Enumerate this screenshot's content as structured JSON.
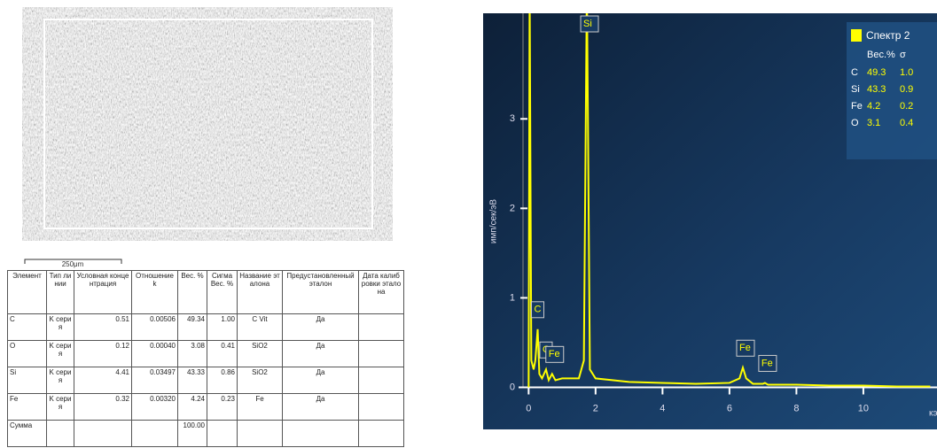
{
  "image": {
    "label": "Спектр 2",
    "scale": "250μm"
  },
  "table": {
    "headers": [
      "Элемент",
      "Тип линии",
      "Условная концентрация",
      "Отношение k",
      "Вес. %",
      "Сигма Вес. %",
      "Название эталона",
      "Предустановленный эталон",
      "Дата калибровки эталона"
    ],
    "rows": [
      {
        "element": "C",
        "line": "K серия",
        "conc": "0.51",
        "ratio": "0.00506",
        "wt": "49.34",
        "sigma": "1.00",
        "standard": "C Vit",
        "preset": "Да"
      },
      {
        "element": "O",
        "line": "K серия",
        "conc": "0.12",
        "ratio": "0.00040",
        "wt": "3.08",
        "sigma": "0.41",
        "standard": "SiO2",
        "preset": "Да"
      },
      {
        "element": "Si",
        "line": "K серия",
        "conc": "4.41",
        "ratio": "0.03497",
        "wt": "43.33",
        "sigma": "0.86",
        "standard": "SiO2",
        "preset": "Да"
      },
      {
        "element": "Fe",
        "line": "K серия",
        "conc": "0.32",
        "ratio": "0.00320",
        "wt": "4.24",
        "sigma": "0.23",
        "standard": "Fe",
        "preset": "Да"
      }
    ],
    "sum": {
      "label": "Сумма",
      "wt": "100.00"
    }
  },
  "chart_data": {
    "type": "line",
    "y_label": "имп/сек/эВ",
    "x_label": "кэ",
    "series": [
      {
        "name": "Спектр 2",
        "color": "#ffff00",
        "x": [
          0,
          0.03,
          0.08,
          0.15,
          0.2,
          0.27,
          0.32,
          0.4,
          0.52,
          0.6,
          0.7,
          0.8,
          1.0,
          1.2,
          1.5,
          1.65,
          1.74,
          1.83,
          2.0,
          2.5,
          3,
          4,
          5,
          6,
          6.3,
          6.4,
          6.5,
          6.7,
          7.0,
          7.06,
          7.15,
          8,
          9,
          10,
          11,
          12
        ],
        "values": [
          0,
          4.5,
          0.3,
          0.2,
          0.3,
          0.65,
          0.15,
          0.1,
          0.2,
          0.08,
          0.15,
          0.08,
          0.1,
          0.1,
          0.1,
          0.3,
          4.5,
          0.2,
          0.1,
          0.08,
          0.06,
          0.05,
          0.04,
          0.05,
          0.1,
          0.22,
          0.1,
          0.04,
          0.04,
          0.05,
          0.03,
          0.03,
          0.02,
          0.02,
          0.01,
          0.01
        ]
      }
    ],
    "peak_labels": [
      {
        "label": "C",
        "x": 0.27
      },
      {
        "label": "O",
        "x": 0.52
      },
      {
        "label": "Fe",
        "x": 0.7
      },
      {
        "label": "Si",
        "x": 1.74
      },
      {
        "label": "Fe",
        "x": 6.4
      },
      {
        "label": "Fe",
        "x": 7.06
      }
    ],
    "xlim": [
      -0.3,
      12.2
    ],
    "ylim": [
      -0.47,
      4.18
    ],
    "xticks": [
      0,
      2,
      4,
      6,
      8,
      10
    ],
    "yticks": [
      0,
      1,
      2,
      3
    ],
    "legend": {
      "title": "Спектр 2",
      "columns": [
        "Вес.%",
        "σ"
      ],
      "rows": [
        [
          "C",
          "49.3",
          "1.0"
        ],
        [
          "Si",
          "43.3",
          "0.9"
        ],
        [
          "Fe",
          "4.2",
          "0.2"
        ],
        [
          "O",
          "3.1",
          "0.4"
        ]
      ]
    }
  }
}
